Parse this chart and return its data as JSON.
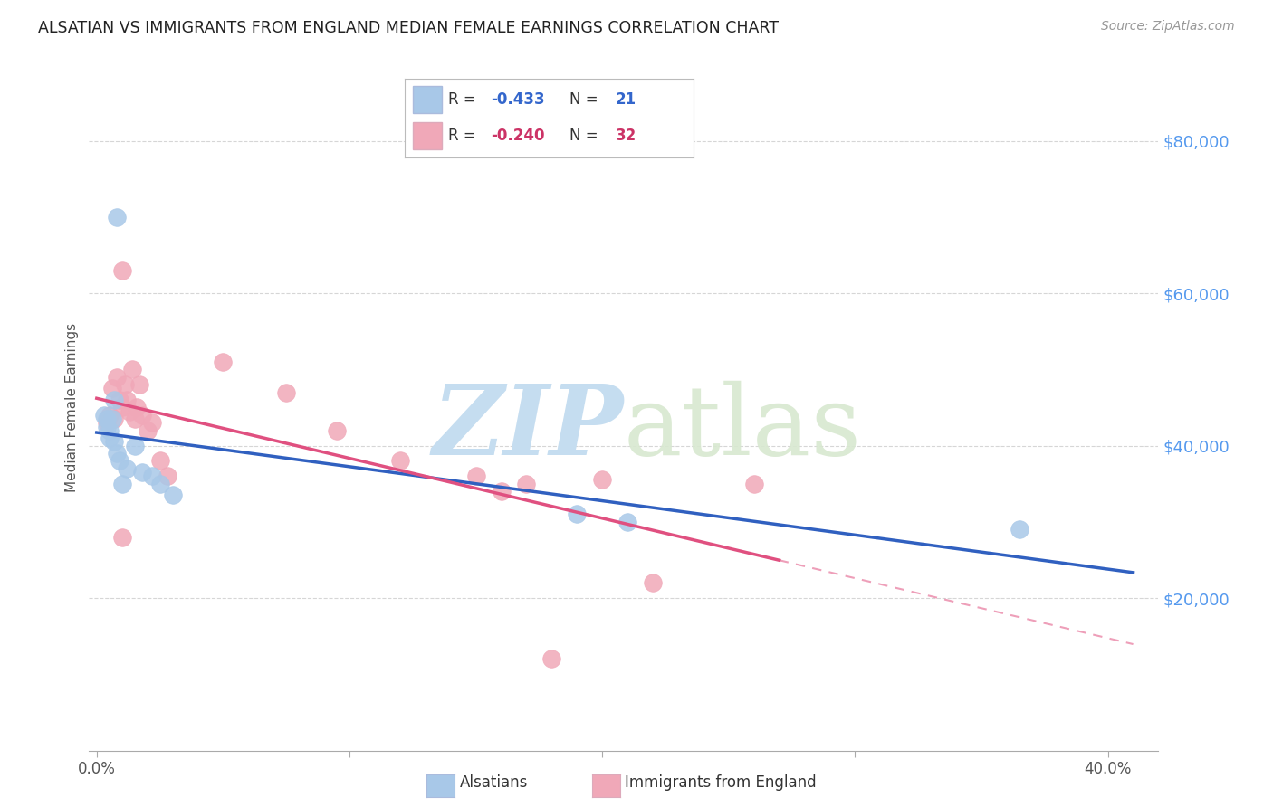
{
  "title": "ALSATIAN VS IMMIGRANTS FROM ENGLAND MEDIAN FEMALE EARNINGS CORRELATION CHART",
  "source": "Source: ZipAtlas.com",
  "ylabel": "Median Female Earnings",
  "xlim": [
    -0.003,
    0.42
  ],
  "ylim": [
    0,
    90000
  ],
  "yticks": [
    20000,
    40000,
    60000,
    80000
  ],
  "ytick_labels": [
    "$20,000",
    "$40,000",
    "$60,000",
    "$80,000"
  ],
  "xticks": [
    0.0,
    0.1,
    0.2,
    0.3,
    0.4
  ],
  "xtick_labels": [
    "0.0%",
    "",
    "",
    "",
    "40.0%"
  ],
  "blue_r": "-0.433",
  "blue_n": "21",
  "pink_r": "-0.240",
  "pink_n": "32",
  "background_color": "#ffffff",
  "blue_color": "#a8c8e8",
  "pink_color": "#f0a8b8",
  "blue_line_color": "#3060c0",
  "pink_line_color": "#e05080",
  "grid_color": "#cccccc",
  "blue_x": [
    0.007,
    0.003,
    0.004,
    0.004,
    0.005,
    0.005,
    0.006,
    0.007,
    0.008,
    0.009,
    0.01,
    0.012,
    0.015,
    0.018,
    0.022,
    0.025,
    0.03,
    0.19,
    0.21,
    0.365,
    0.008
  ],
  "blue_y": [
    46000,
    44000,
    43500,
    42500,
    42000,
    41000,
    43500,
    40500,
    39000,
    38000,
    35000,
    37000,
    40000,
    36500,
    36000,
    35000,
    33500,
    31000,
    30000,
    29000,
    70000
  ],
  "pink_x": [
    0.004,
    0.005,
    0.006,
    0.007,
    0.008,
    0.009,
    0.01,
    0.01,
    0.011,
    0.012,
    0.013,
    0.014,
    0.015,
    0.016,
    0.017,
    0.018,
    0.02,
    0.022,
    0.025,
    0.028,
    0.05,
    0.075,
    0.095,
    0.12,
    0.15,
    0.17,
    0.01,
    0.2,
    0.22,
    0.26,
    0.16,
    0.18
  ],
  "pink_y": [
    43000,
    44000,
    47500,
    43500,
    49000,
    46000,
    45000,
    63000,
    48000,
    46000,
    44500,
    50000,
    43500,
    45000,
    48000,
    44000,
    42000,
    43000,
    38000,
    36000,
    51000,
    47000,
    42000,
    38000,
    36000,
    35000,
    28000,
    35500,
    22000,
    35000,
    34000,
    12000
  ]
}
